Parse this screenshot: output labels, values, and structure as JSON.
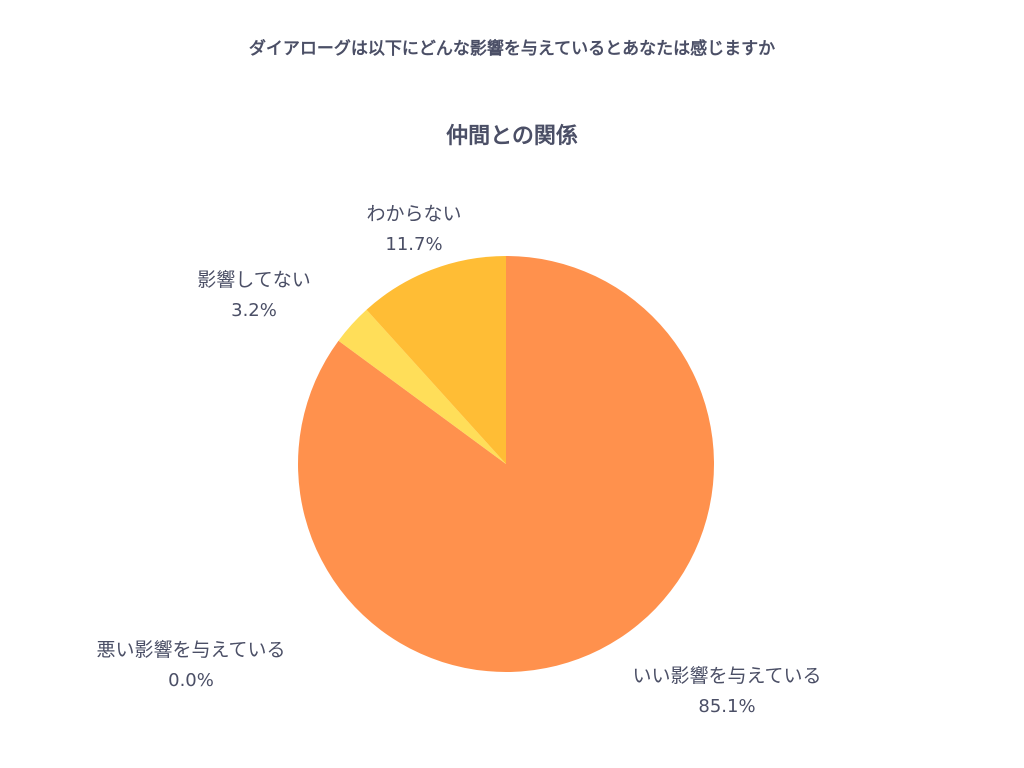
{
  "header": {
    "question": "ダイアローグは以下にどんな影響を与えているとあなたは感じますか"
  },
  "chart_data": {
    "type": "pie",
    "title": "仲間との関係",
    "slices": [
      {
        "label": "いい影響を与えている",
        "value": 85.1,
        "display": "85.1%",
        "color": "#ff914d"
      },
      {
        "label": "悪い影響を与えている",
        "value": 0.0,
        "display": "0.0%",
        "color": "#ff914d"
      },
      {
        "label": "影響してない",
        "value": 3.2,
        "display": "3.2%",
        "color": "#ffde59"
      },
      {
        "label": "わからない",
        "value": 11.7,
        "display": "11.7%",
        "color": "#ffbd35"
      }
    ]
  }
}
